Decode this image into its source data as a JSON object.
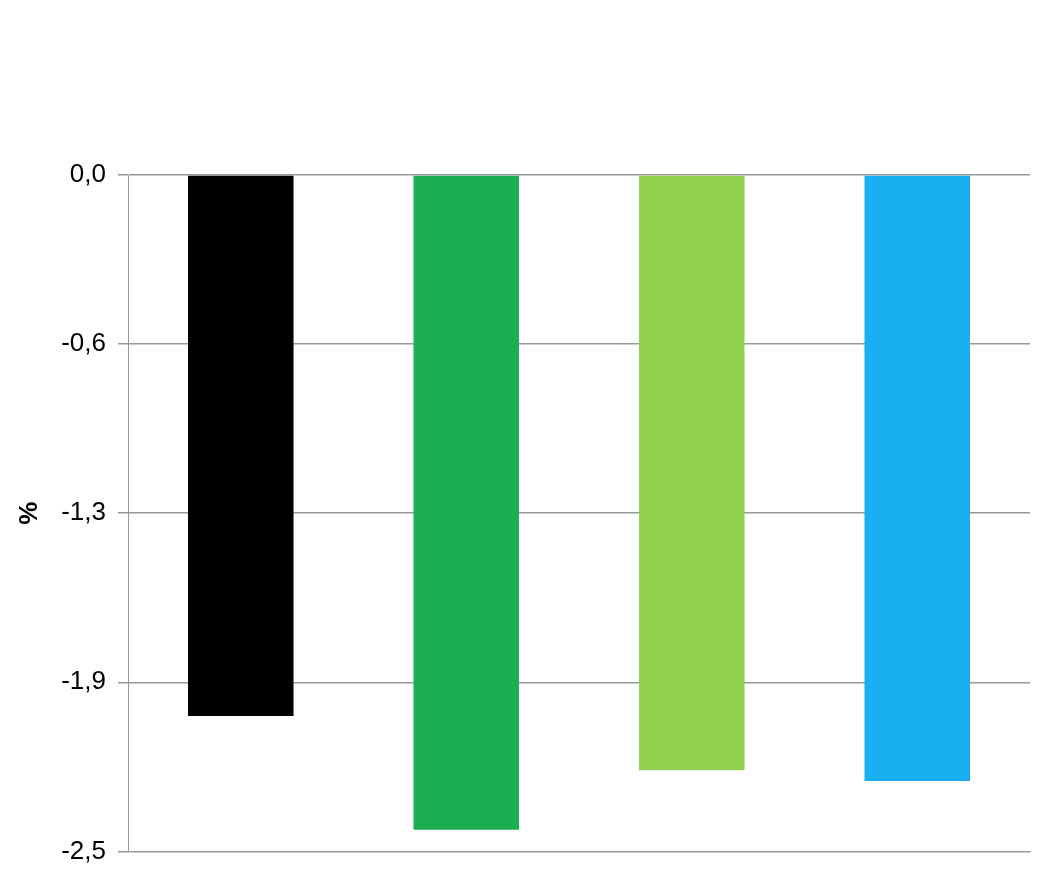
{
  "chart_data": {
    "type": "bar",
    "ylabel": "%",
    "categories": [
      null,
      null,
      null,
      null
    ],
    "values": [
      -2.0,
      -2.42,
      -2.2,
      -2.24
    ],
    "colors": [
      "#000000",
      "#1aaf50",
      "#92d050",
      "#18b0f0"
    ],
    "ylim": [
      -2.5,
      0
    ],
    "yticks": [
      {
        "value": 0,
        "label": "0,0"
      },
      {
        "value": -0.625,
        "label": "-0,6"
      },
      {
        "value": -1.25,
        "label": "-1,3"
      },
      {
        "value": -1.875,
        "label": "-1,9"
      },
      {
        "value": -2.5,
        "label": "-2,5"
      }
    ],
    "grid": "y"
  }
}
